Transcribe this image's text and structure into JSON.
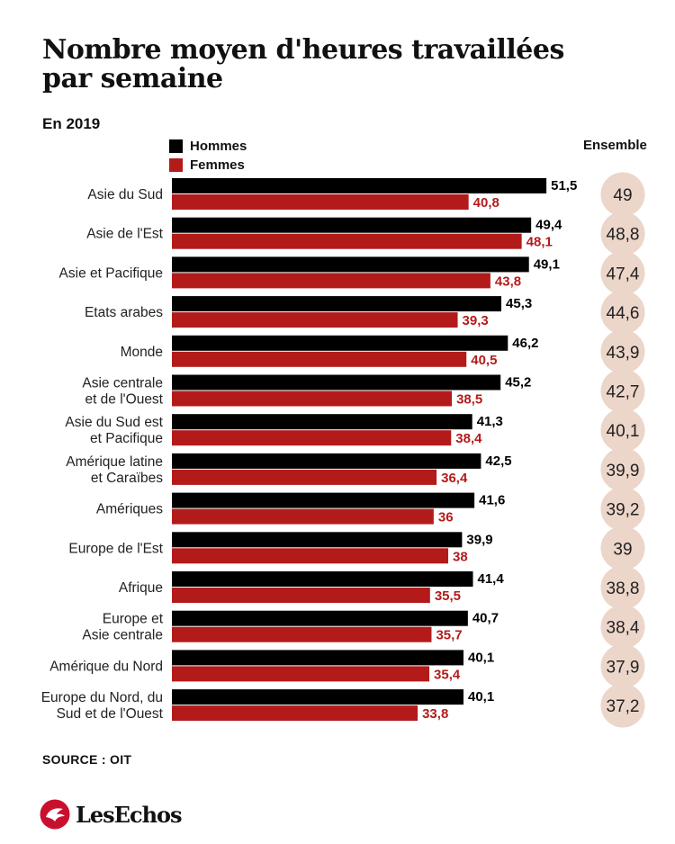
{
  "title": "Nombre moyen d'heures travaillées par semaine",
  "subtitle": "En 2019",
  "ensemble_header": "Ensemble",
  "source": "SOURCE : OIT",
  "logo_text": "LesEchos",
  "colors": {
    "hommes": "#000000",
    "femmes": "#b31b1b",
    "ensemble_circle": "#ecd5c9",
    "logo": "#c8102e"
  },
  "chart_data": {
    "type": "bar",
    "orientation": "horizontal",
    "categories": [
      [
        "Asie du Sud"
      ],
      [
        "Asie de l'Est"
      ],
      [
        "Asie et Pacifique"
      ],
      [
        "Etats arabes"
      ],
      [
        "Monde"
      ],
      [
        "Asie centrale",
        "et de l'Ouest"
      ],
      [
        "Asie du Sud est",
        "et Pacifique"
      ],
      [
        "Amérique latine",
        "et Caraïbes"
      ],
      [
        "Amériques"
      ],
      [
        "Europe de l'Est"
      ],
      [
        "Afrique"
      ],
      [
        "Europe et",
        "Asie centrale"
      ],
      [
        "Amérique du Nord"
      ],
      [
        "Europe du Nord, du",
        "Sud et de l'Ouest"
      ]
    ],
    "series": [
      {
        "name": "Hommes",
        "values": [
          51.5,
          49.4,
          49.1,
          45.3,
          46.2,
          45.2,
          41.3,
          42.5,
          41.6,
          39.9,
          41.4,
          40.7,
          40.1,
          40.1
        ]
      },
      {
        "name": "Femmes",
        "values": [
          40.8,
          48.1,
          43.8,
          39.3,
          40.5,
          38.5,
          38.4,
          36.4,
          36,
          38,
          35.5,
          35.7,
          35.4,
          33.8
        ]
      }
    ],
    "ensemble": [
      49,
      48.8,
      47.4,
      44.6,
      43.9,
      42.7,
      40.1,
      39.9,
      39.2,
      39,
      38.8,
      38.4,
      37.9,
      37.2
    ],
    "legend_position": "top-left",
    "grid": false
  }
}
